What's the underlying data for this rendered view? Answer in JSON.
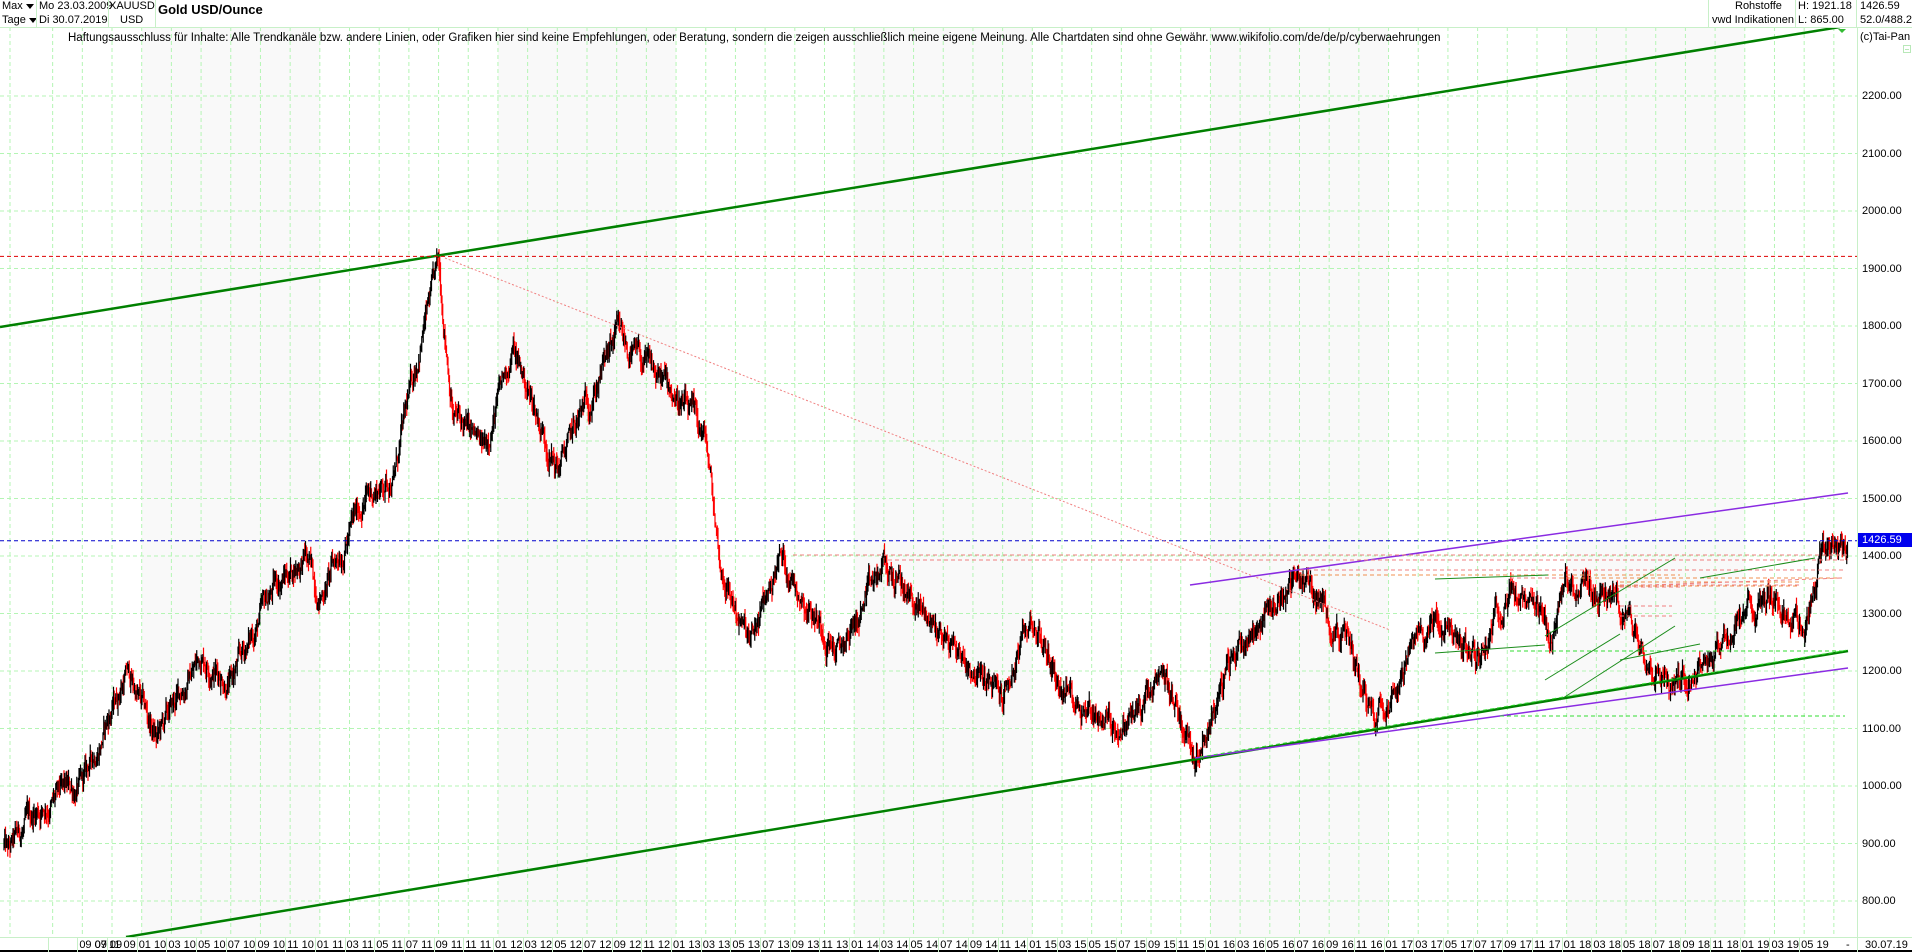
{
  "header": {
    "period_select": "Max",
    "interval_select": "Tage",
    "date_from": "Mo 23.03.2009",
    "date_to": "Di 30.07.2019",
    "symbol": "XAUUSD",
    "currency": "USD",
    "title": "Gold USD/Ounce",
    "category": "Rohstoffe",
    "source": "vwd Indikationen",
    "high": "H: 1921.18",
    "low": "L: 865.00",
    "last": "1426.59",
    "range_info": "52.0/488.2",
    "copyright": "(c)Tai-Pan"
  },
  "disclaimer": "Haftungsausschluss für Inhalte: Alle Trendkanäle bzw. andere Linien, oder Grafiken hier sind keine Empfehlungen, oder Beratung, sondern die zeigen ausschließlich meine eigene Meinung. Alle Chartdaten sind ohne Gewähr.  www.wikifolio.com/de/de/p/cyberwaehrungen",
  "last_price_label": "1426.59",
  "colors": {
    "grid": "#b4f5b4",
    "band": "#f9f9f9",
    "candle_up": "#000000",
    "candle_down": "#ff0000",
    "channel_main": "#008000",
    "channel_thin": "#1a8c1a",
    "dashed_green": "#33dd33",
    "purple": "#8a2be2",
    "high_line": "#dd0000",
    "last_line": "#0000cc",
    "resist_dash": "#f08080",
    "resist_orange": "#f09050",
    "downtrend_dots": "#f08080",
    "price_tag_bg": "#0000ee"
  },
  "chart_data": {
    "type": "candlestick",
    "title": "Gold USD/Ounce",
    "subtitle": "XAUUSD, USD, Tage (daily), Max",
    "xlabel": "",
    "ylabel": "USD",
    "ylim": [
      750,
      2300
    ],
    "grid": true,
    "y_ticks": [
      800,
      900,
      1000,
      1100,
      1200,
      1300,
      1400,
      1500,
      1600,
      1700,
      1800,
      1900,
      2000,
      2100,
      2200
    ],
    "y_tick_labels": [
      "800.00",
      "900.00",
      "1000.00",
      "1100.00",
      "1200.00",
      "1300.00",
      "1400.00",
      "1500.00",
      "1600.00",
      "1700.00",
      "1800.00",
      "1900.00",
      "2000.00",
      "2100.00",
      "2200.00"
    ],
    "x_tick_labels": [
      "07 09",
      "09 09",
      "11 09",
      "01 10",
      "03 10",
      "05 10",
      "07 10",
      "09 10",
      "11 10",
      "01 11",
      "03 11",
      "05 11",
      "07 11",
      "09 11",
      "11 11",
      "01 12",
      "03 12",
      "05 12",
      "07 12",
      "09 12",
      "11 12",
      "01 13",
      "03 13",
      "05 13",
      "07 13",
      "09 13",
      "11 13",
      "01 14",
      "03 14",
      "05 14",
      "07 14",
      "09 14",
      "11 14",
      "01 15",
      "03 15",
      "05 15",
      "07 15",
      "09 15",
      "11 15",
      "01 16",
      "03 16",
      "05 16",
      "07 16",
      "09 16",
      "11 16",
      "01 17",
      "03 17",
      "05 17",
      "07 17",
      "09 17",
      "11 17",
      "01 18",
      "03 18",
      "05 18",
      "07 18",
      "09 18",
      "11 18",
      "01 19",
      "03 19",
      "05 19",
      "-",
      "30.07.19"
    ],
    "high": 1921.18,
    "low": 865.0,
    "last": 1426.59,
    "price_waypoints": {
      "dates": [
        "2009-03",
        "2009-04",
        "2009-06",
        "2009-09",
        "2009-12",
        "2010-02",
        "2010-05",
        "2010-07",
        "2010-10",
        "2010-12",
        "2011-01",
        "2011-04",
        "2011-06",
        "2011-08",
        "2011-09",
        "2011-10",
        "2011-12",
        "2012-02",
        "2012-05",
        "2012-09",
        "2012-10",
        "2013-01",
        "2013-03",
        "2013-04",
        "2013-06",
        "2013-08",
        "2013-12",
        "2014-03",
        "2014-06",
        "2014-11",
        "2015-01",
        "2015-03",
        "2015-07",
        "2015-10",
        "2015-12",
        "2016-03",
        "2016-07",
        "2016-10",
        "2016-12",
        "2017-03",
        "2017-04",
        "2017-07",
        "2017-09",
        "2017-12",
        "2018-01",
        "2018-04",
        "2018-08",
        "2018-10",
        "2019-01",
        "2019-02",
        "2019-05",
        "2019-06",
        "2019-07"
      ],
      "close": [
        950,
        880,
        960,
        1000,
        1200,
        1080,
        1230,
        1180,
        1350,
        1400,
        1330,
        1500,
        1540,
        1800,
        1900,
        1650,
        1580,
        1760,
        1550,
        1780,
        1750,
        1680,
        1600,
        1380,
        1240,
        1400,
        1230,
        1380,
        1290,
        1150,
        1290,
        1170,
        1100,
        1180,
        1060,
        1250,
        1370,
        1260,
        1130,
        1250,
        1290,
        1220,
        1350,
        1250,
        1360,
        1330,
        1180,
        1220,
        1290,
        1340,
        1280,
        1400,
        1426.59
      ]
    },
    "annotations": [
      {
        "type": "trendline",
        "name": "upper channel",
        "color": "#008000",
        "from": [
          "2009-03",
          1795
        ],
        "to": [
          "2019-07",
          2318
        ]
      },
      {
        "type": "trendline",
        "name": "lower channel",
        "color": "#008000",
        "from": [
          "2009-09",
          740
        ],
        "to": [
          "2019-07",
          1237
        ]
      },
      {
        "type": "hline",
        "name": "all time high",
        "color": "#dd0000",
        "style": "dashed",
        "value": 1921.18
      },
      {
        "type": "hline",
        "name": "last price",
        "color": "#0000cc",
        "style": "dashed",
        "value": 1426.59
      },
      {
        "type": "trendline",
        "name": "downtrend from 2011 high",
        "style": "dotted",
        "color": "#f08080",
        "from": [
          "2011-09",
          1921
        ],
        "to": [
          "2016-12",
          1275
        ]
      },
      {
        "type": "trendline",
        "name": "purple upper",
        "color": "#8a2be2",
        "from": [
          "2015-11",
          1345
        ],
        "to": [
          "2019-07",
          1505
        ]
      },
      {
        "type": "trendline",
        "name": "purple lower",
        "color": "#8a2be2",
        "from": [
          "2015-12",
          1045
        ],
        "to": [
          "2019-07",
          1205
        ]
      },
      {
        "type": "hline",
        "name": "support",
        "color": "#33dd33",
        "style": "dashed",
        "value": 1120
      },
      {
        "type": "trendline",
        "name": "rising wedge support",
        "color": "#33dd33",
        "style": "dashed",
        "from": [
          "2015-12",
          1050
        ],
        "to": [
          "2019-07",
          1237
        ]
      }
    ]
  }
}
